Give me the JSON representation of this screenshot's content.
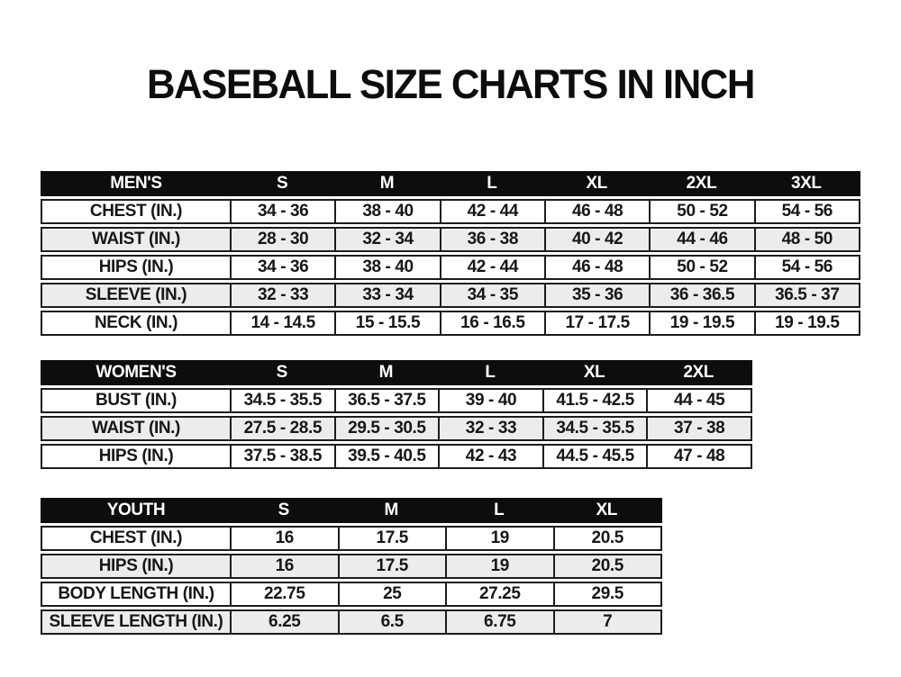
{
  "page": {
    "title": "BASEBALL SIZE CHARTS IN INCH",
    "colors": {
      "background": "#ffffff",
      "header_bg": "#0d0d0d",
      "header_text": "#ffffff",
      "row_alt_bg": "#ececec",
      "border": "#1c1c1c",
      "text": "#171717"
    }
  },
  "chart_data": [
    {
      "type": "table",
      "name": "mens-size-chart",
      "header": [
        "MEN'S",
        "S",
        "M",
        "L",
        "XL",
        "2XL",
        "3XL"
      ],
      "rows": [
        [
          "CHEST (IN.)",
          "34 - 36",
          "38 - 40",
          "42 - 44",
          "46 - 48",
          "50 - 52",
          "54 - 56"
        ],
        [
          "WAIST (IN.)",
          "28 - 30",
          "32 - 34",
          "36 - 38",
          "40 - 42",
          "44 - 46",
          "48 - 50"
        ],
        [
          "HIPS (IN.)",
          "34 - 36",
          "38 - 40",
          "42 - 44",
          "46 - 48",
          "50 - 52",
          "54 - 56"
        ],
        [
          "SLEEVE (IN.)",
          "32 - 33",
          "33 - 34",
          "34 - 35",
          "35 - 36",
          "36 - 36.5",
          "36.5 - 37"
        ],
        [
          "NECK (IN.)",
          "14 - 14.5",
          "15 - 15.5",
          "16 - 16.5",
          "17 - 17.5",
          "19 - 19.5",
          "19 - 19.5"
        ]
      ]
    },
    {
      "type": "table",
      "name": "womens-size-chart",
      "header": [
        "WOMEN'S",
        "S",
        "M",
        "L",
        "XL",
        "2XL"
      ],
      "rows": [
        [
          "BUST (IN.)",
          "34.5 - 35.5",
          "36.5 - 37.5",
          "39 - 40",
          "41.5 - 42.5",
          "44 - 45"
        ],
        [
          "WAIST (IN.)",
          "27.5 - 28.5",
          "29.5 - 30.5",
          "32 - 33",
          "34.5 - 35.5",
          "37 - 38"
        ],
        [
          "HIPS (IN.)",
          "37.5 - 38.5",
          "39.5 - 40.5",
          "42 - 43",
          "44.5 - 45.5",
          "47 - 48"
        ]
      ]
    },
    {
      "type": "table",
      "name": "youth-size-chart",
      "header": [
        "YOUTH",
        "S",
        "M",
        "L",
        "XL"
      ],
      "rows": [
        [
          "CHEST (IN.)",
          "16",
          "17.5",
          "19",
          "20.5"
        ],
        [
          "HIPS (IN.)",
          "16",
          "17.5",
          "19",
          "20.5"
        ],
        [
          "BODY LENGTH (IN.)",
          "22.75",
          "25",
          "27.25",
          "29.5"
        ],
        [
          "SLEEVE LENGTH (IN.)",
          "6.25",
          "6.5",
          "6.75",
          "7"
        ]
      ]
    }
  ]
}
